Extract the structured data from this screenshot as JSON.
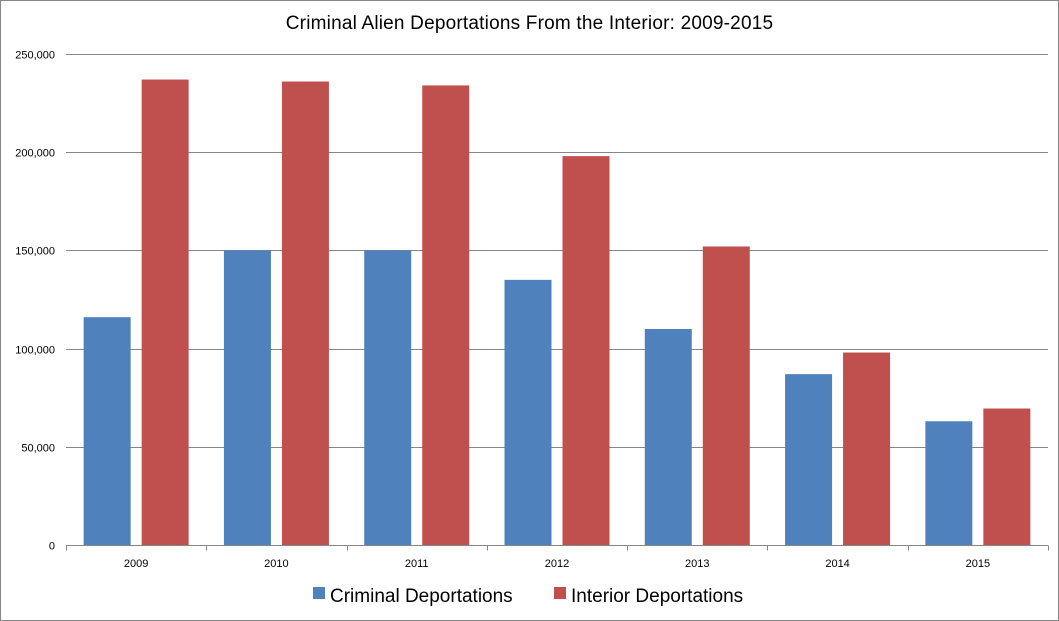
{
  "chart_data": {
    "type": "bar",
    "title": "Criminal Alien Deportations From the Interior:  2009-2015",
    "xlabel": "",
    "ylabel": "",
    "categories": [
      "2009",
      "2010",
      "2011",
      "2012",
      "2013",
      "2014",
      "2015"
    ],
    "series": [
      {
        "name": "Criminal Deportations",
        "color": "#4F81BD",
        "values": [
          116000,
          150000,
          150000,
          135000,
          110000,
          87000,
          63000
        ]
      },
      {
        "name": "Interior Deportations",
        "color": "#C0504D",
        "values": [
          237000,
          236000,
          234000,
          198000,
          152000,
          98000,
          69500
        ]
      }
    ],
    "ylim": [
      0,
      250000
    ],
    "yticks": [
      0,
      50000,
      100000,
      150000,
      200000,
      250000
    ],
    "ytick_labels": [
      "0",
      "50,000",
      "100,000",
      "150,000",
      "200,000",
      "250,000"
    ],
    "grid": true,
    "gridline_color": "#868686",
    "legend_position": "bottom"
  }
}
